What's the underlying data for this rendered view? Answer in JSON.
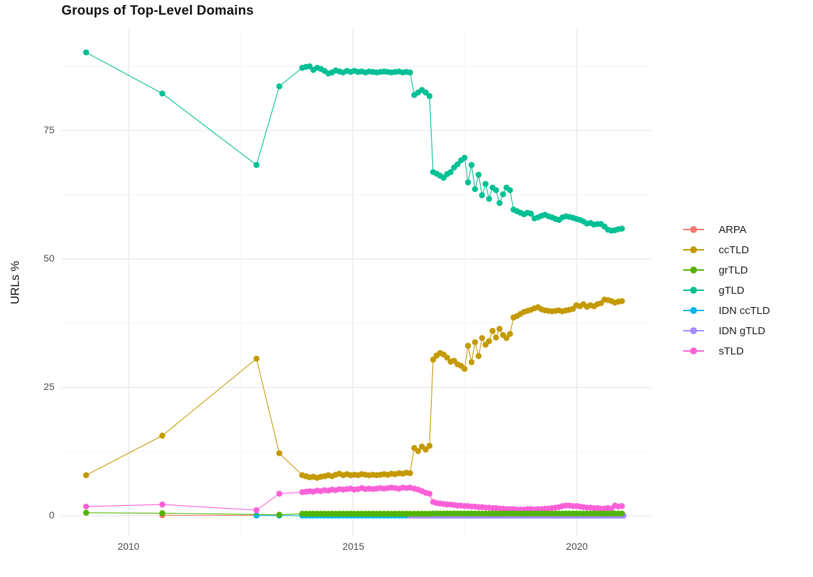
{
  "chart_data": {
    "type": "line",
    "title": "Groups of Top-Level Domains",
    "xlabel": "",
    "ylabel": "URLs %",
    "legend_position": "right",
    "grid": true,
    "xlim": [
      2008.5,
      2021.65
    ],
    "ylim": [
      -3.9,
      94.7
    ],
    "x_ticks": [
      "2010",
      "2015",
      "2020"
    ],
    "x_tick_values": [
      2010,
      2015,
      2020
    ],
    "y_ticks": [
      "0",
      "25",
      "50",
      "75"
    ],
    "y_tick_values": [
      0,
      25,
      50,
      75
    ],
    "x_minor": [
      2012.5,
      2017.5
    ],
    "y_minor": [
      12.5,
      37.5,
      62.5,
      87.5
    ],
    "colors": {
      "major_grid": "#e7e7e7",
      "minor_grid": "#f3f3f3",
      "tick_text": "#4d4d4d",
      "title_text": "#111111"
    },
    "draw_order": [
      0,
      4,
      5,
      6,
      1,
      3,
      2
    ],
    "series": [
      {
        "name": "ARPA",
        "color": "#F8766D",
        "segments": [
          {
            "points": [
              [
                2010.75,
                0.1
              ],
              [
                2012.85,
                0.1
              ]
            ]
          }
        ]
      },
      {
        "name": "ccTLD",
        "color": "#C49A00",
        "segments": [
          {
            "points": [
              [
                2009.05,
                7.9
              ],
              [
                2010.75,
                15.6
              ],
              [
                2012.85,
                30.6
              ],
              [
                2013.36,
                12.2
              ]
            ]
          },
          {
            "start": 2013.87,
            "step": 0.083,
            "values": [
              7.9,
              7.7,
              7.5,
              7.6,
              7.4,
              7.6,
              7.7,
              7.9,
              7.7,
              8.0,
              8.2,
              7.9,
              8.1,
              7.9,
              8.0,
              7.9,
              8.1,
              8.0,
              7.9,
              8.0,
              7.9,
              8.0,
              8.1,
              8.0,
              8.2,
              8.1,
              8.3,
              8.2,
              8.4,
              8.3
            ]
          },
          {
            "start": 2016.37,
            "step": 0.085,
            "values": [
              13.2,
              12.6,
              13.5,
              12.9,
              13.6
            ]
          },
          {
            "start": 2016.79,
            "step": 0.078,
            "values": [
              30.4,
              31.2,
              31.7,
              31.4,
              30.8,
              30.0,
              30.2,
              29.5,
              29.2,
              28.6,
              33.1,
              29.9,
              33.8,
              31.1,
              34.6,
              33.3,
              34.0,
              36.0,
              34.7,
              36.4,
              35.2,
              34.6,
              35.4,
              38.6,
              38.9,
              39.3,
              39.7,
              39.9,
              40.1,
              40.4,
              40.6,
              40.2,
              40.0,
              39.9,
              39.8,
              39.9,
              40.0,
              39.8,
              40.0,
              40.1,
              40.3,
              41.0,
              40.8,
              41.2,
              40.7,
              41.0,
              40.8,
              41.2,
              41.4,
              42.1,
              42.0,
              41.8,
              41.5,
              41.7,
              41.8
            ]
          }
        ]
      },
      {
        "name": "grTLD",
        "color": "#53B400",
        "segments": [
          {
            "points": [
              [
                2009.05,
                0.6
              ],
              [
                2010.75,
                0.5
              ],
              [
                2013.36,
                0.2
              ]
            ]
          },
          {
            "start": 2013.87,
            "step": 0.083,
            "count": 30,
            "const": 0.4
          },
          {
            "start": 2016.37,
            "step": 0.085,
            "count": 5,
            "const": 0.4
          },
          {
            "start": 2016.79,
            "step": 0.078,
            "count": 55,
            "const": 0.45
          }
        ]
      },
      {
        "name": "gTLD",
        "color": "#00C094",
        "segments": [
          {
            "points": [
              [
                2009.05,
                90.2
              ],
              [
                2010.75,
                82.2
              ],
              [
                2012.85,
                68.3
              ],
              [
                2013.36,
                83.6
              ]
            ]
          },
          {
            "start": 2013.87,
            "step": 0.083,
            "values": [
              87.2,
              87.4,
              87.5,
              86.8,
              87.2,
              87.0,
              86.6,
              86.1,
              86.3,
              86.7,
              86.5,
              86.3,
              86.6,
              86.4,
              86.6,
              86.4,
              86.5,
              86.3,
              86.5,
              86.4,
              86.3,
              86.4,
              86.5,
              86.4,
              86.3,
              86.4,
              86.5,
              86.3,
              86.4,
              86.3
            ]
          },
          {
            "start": 2016.37,
            "step": 0.085,
            "values": [
              81.9,
              82.4,
              82.9,
              82.4,
              81.7
            ]
          },
          {
            "start": 2016.79,
            "step": 0.078,
            "values": [
              66.9,
              66.6,
              66.2,
              65.8,
              66.5,
              66.9,
              67.8,
              68.4,
              69.2,
              69.7,
              64.9,
              68.3,
              63.6,
              66.4,
              62.4,
              64.6,
              61.7,
              63.9,
              63.4,
              60.9,
              62.6,
              63.9,
              63.4,
              59.6,
              59.3,
              59.0,
              58.7,
              59.0,
              58.8,
              57.9,
              58.1,
              58.4,
              58.6,
              58.3,
              58.1,
              57.8,
              57.6,
              58.1,
              58.3,
              58.2,
              58.0,
              57.8,
              57.6,
              57.3,
              56.9,
              57.0,
              56.7,
              56.8,
              56.8,
              56.3,
              55.7,
              55.5,
              55.6,
              55.8,
              55.9
            ]
          }
        ]
      },
      {
        "name": "IDN ccTLD",
        "color": "#00B6EB",
        "segments": [
          {
            "points": [
              [
                2012.85,
                0.05
              ],
              [
                2013.36,
                0.05
              ]
            ]
          },
          {
            "start": 2013.87,
            "step": 0.083,
            "count": 30,
            "const": 0.05
          },
          {
            "start": 2016.37,
            "step": 0.085,
            "count": 5,
            "const": 0.05
          },
          {
            "start": 2016.79,
            "step": 0.078,
            "count": 55,
            "const": 0.05
          }
        ]
      },
      {
        "name": "IDN gTLD",
        "color": "#A58AFF",
        "segments": [
          {
            "start": 2016.28,
            "step": 0.078,
            "count": 62,
            "const": 0.05
          }
        ]
      },
      {
        "name": "sTLD",
        "color": "#FB61D7",
        "segments": [
          {
            "points": [
              [
                2009.05,
                1.8
              ],
              [
                2010.75,
                2.2
              ],
              [
                2012.85,
                1.1
              ],
              [
                2013.36,
                4.3
              ]
            ]
          },
          {
            "start": 2013.87,
            "step": 0.083,
            "values": [
              4.6,
              4.7,
              4.8,
              4.7,
              4.9,
              4.8,
              5.0,
              4.9,
              5.1,
              5.0,
              5.2,
              5.1,
              5.2,
              5.3,
              5.1,
              5.2,
              5.4,
              5.2,
              5.3,
              5.2,
              5.3,
              5.4,
              5.3,
              5.4,
              5.5,
              5.4,
              5.3,
              5.5,
              5.4,
              5.5
            ]
          },
          {
            "start": 2016.37,
            "step": 0.085,
            "values": [
              5.3,
              5.1,
              4.8,
              4.5,
              4.3
            ]
          },
          {
            "start": 2016.79,
            "step": 0.078,
            "values": [
              2.7,
              2.5,
              2.4,
              2.3,
              2.2,
              2.2,
              2.1,
              2.0,
              2.0,
              1.9,
              1.9,
              1.8,
              1.8,
              1.7,
              1.7,
              1.6,
              1.6,
              1.5,
              1.5,
              1.4,
              1.4,
              1.3,
              1.3,
              1.3,
              1.2,
              1.2,
              1.2,
              1.3,
              1.3,
              1.2,
              1.3,
              1.3,
              1.4,
              1.4,
              1.5,
              1.6,
              1.7,
              1.9,
              2.0,
              2.0,
              1.9,
              1.9,
              1.8,
              1.7,
              1.6,
              1.6,
              1.5,
              1.5,
              1.4,
              1.4,
              1.5,
              1.4,
              2.0,
              1.8,
              1.9
            ]
          }
        ]
      }
    ]
  }
}
